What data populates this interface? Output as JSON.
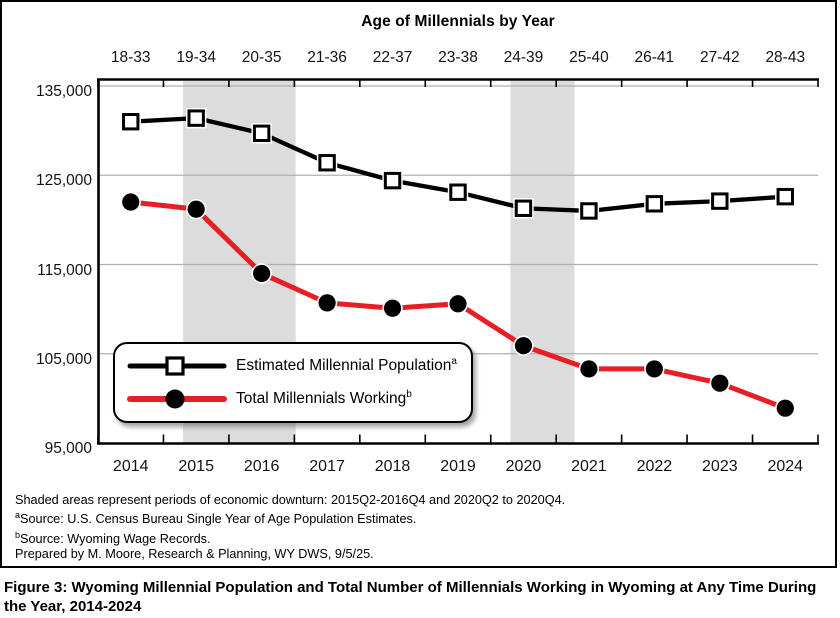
{
  "chart_data": {
    "type": "line",
    "title": "Age of Millennials by Year",
    "top_axis_labels": [
      "18-33",
      "19-34",
      "20-35",
      "21-36",
      "22-37",
      "23-38",
      "24-39",
      "25-40",
      "26-41",
      "27-42",
      "28-43"
    ],
    "categories": [
      "2014",
      "2015",
      "2016",
      "2017",
      "2018",
      "2019",
      "2020",
      "2021",
      "2022",
      "2023",
      "2024"
    ],
    "y_tick_labels": [
      "135,000",
      "125,000",
      "115,000",
      "105,000",
      "95,000"
    ],
    "y_tick_values": [
      135000,
      125000,
      115000,
      105000,
      95000
    ],
    "ylim": [
      95000,
      135550
    ],
    "grid": "horizontal",
    "legend_position": "lower-left",
    "series": [
      {
        "name": "Estimated Millennial Population",
        "footnote_mark": "a",
        "marker": "square",
        "color": "#000000",
        "values": [
          131000,
          131400,
          129700,
          126400,
          124400,
          123100,
          121300,
          121000,
          121800,
          122100,
          122600
        ]
      },
      {
        "name": "Total Millennials Working",
        "footnote_mark": "b",
        "marker": "circle",
        "color": "#e61e26",
        "values": [
          122000,
          121200,
          114000,
          110700,
          110100,
          110600,
          105900,
          103300,
          103300,
          101700,
          98900
        ]
      }
    ],
    "shaded_regions": [
      {
        "period": "2015Q2-2016Q4",
        "from_year": 2015.3,
        "to_year": 2017.02
      },
      {
        "period": "2020Q2 to 2020Q4",
        "from_year": 2020.3,
        "to_year": 2021.28
      }
    ],
    "shaded_color": "#dcdcdc"
  },
  "legend": {
    "items": [
      {
        "label": "Estimated Millennial Population",
        "sup": "a"
      },
      {
        "label": "Total Millennials Working",
        "sup": "b"
      }
    ]
  },
  "footnotes": [
    {
      "sup": "",
      "text": "Shaded areas represent periods of economic downturn: 2015Q2-2016Q4 and 2020Q2 to 2020Q4."
    },
    {
      "sup": "a",
      "text": "Source: U.S. Census Bureau Single Year of Age Population Estimates."
    },
    {
      "sup": "b",
      "text": "Source: Wyoming Wage Records."
    },
    {
      "sup": "",
      "text": "Prepared by M. Moore, Research & Planning, WY DWS, 9/5/25."
    }
  ],
  "caption": {
    "text": "Figure 3: Wyoming Millennial Population and Total Number of Millennials Working in Wyoming at Any Time During the Year, 2014-2024"
  }
}
